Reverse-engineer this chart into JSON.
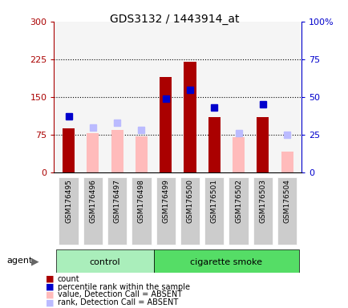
{
  "title": "GDS3132 / 1443914_at",
  "samples": [
    "GSM176495",
    "GSM176496",
    "GSM176497",
    "GSM176498",
    "GSM176499",
    "GSM176500",
    "GSM176501",
    "GSM176502",
    "GSM176503",
    "GSM176504"
  ],
  "n_control": 4,
  "count_values": [
    88,
    null,
    null,
    null,
    190,
    220,
    110,
    null,
    110,
    null
  ],
  "absent_value_bars": [
    null,
    78,
    84,
    72,
    null,
    null,
    null,
    70,
    null,
    42
  ],
  "present_rank_pct": [
    37,
    null,
    null,
    null,
    49,
    55,
    43,
    null,
    45,
    null
  ],
  "absent_rank_pct": [
    null,
    30,
    33,
    28,
    null,
    null,
    null,
    26,
    null,
    25
  ],
  "ylim_left": [
    0,
    300
  ],
  "ylim_right": [
    0,
    100
  ],
  "yticks_left": [
    0,
    75,
    150,
    225,
    300
  ],
  "yticks_right": [
    0,
    25,
    50,
    75,
    100
  ],
  "ytick_labels_left": [
    "0",
    "75",
    "150",
    "225",
    "300"
  ],
  "ytick_labels_right": [
    "0",
    "25",
    "50",
    "75",
    "100%"
  ],
  "color_count": "#aa0000",
  "color_rank": "#0000cc",
  "color_absent_value": "#ffbbbb",
  "color_absent_rank": "#bbbbff",
  "color_control_bg": "#aaeebb",
  "color_smoke_bg": "#55dd66",
  "color_plot_bg": "#f5f5f5",
  "color_label_bg": "#cccccc",
  "marker_size": 6,
  "legend_items": [
    "count",
    "percentile rank within the sample",
    "value, Detection Call = ABSENT",
    "rank, Detection Call = ABSENT"
  ],
  "control_label": "control",
  "smoke_label": "cigarette smoke",
  "agent_label": "agent"
}
